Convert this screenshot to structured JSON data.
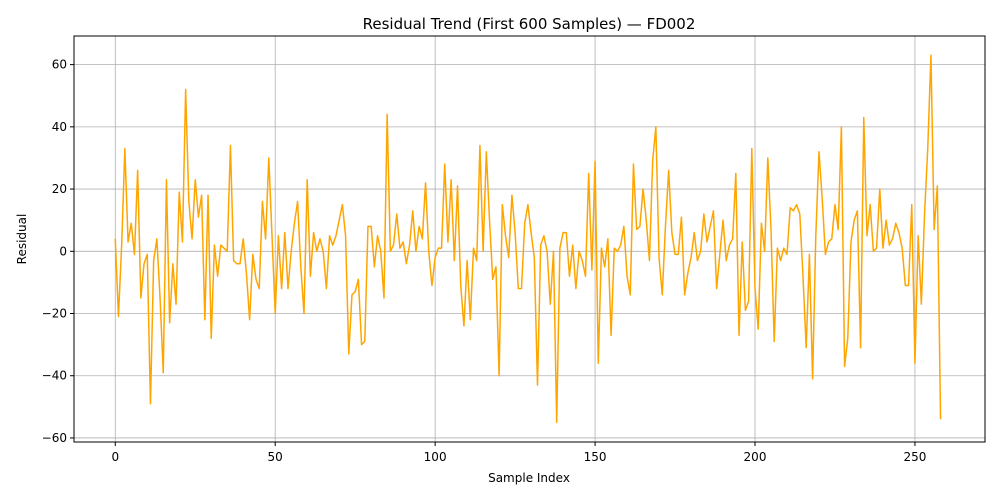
{
  "chart_data": {
    "type": "line",
    "title": "Residual Trend (First 600 Samples) — FD002",
    "xlabel": "Sample Index",
    "ylabel": "Residual",
    "xlim": [
      -12.9,
      271.9
    ],
    "ylim": [
      -61.3,
      69.2
    ],
    "xticks": [
      0,
      50,
      100,
      150,
      200,
      250
    ],
    "yticks": [
      -60,
      -40,
      -20,
      0,
      20,
      40,
      60
    ],
    "grid": true,
    "color": "#ffa500",
    "series": [
      {
        "values": [
          4,
          -21,
          2,
          33,
          3,
          9,
          -1,
          26,
          -15,
          -4,
          -1,
          -49,
          -3,
          4,
          -15,
          -39,
          23,
          -23,
          -4,
          -17,
          19,
          3,
          52,
          16,
          4,
          23,
          11,
          18,
          -22,
          18,
          -28,
          2,
          -8,
          2,
          1,
          0,
          34,
          -3,
          -4,
          -4,
          4,
          -7,
          -22,
          -1,
          -9,
          -12,
          16,
          4,
          30,
          5,
          -20,
          5,
          -12,
          6,
          -12,
          0,
          9,
          16,
          -5,
          -20,
          23,
          -8,
          6,
          0,
          4,
          0,
          -12,
          5,
          2,
          5,
          10,
          15,
          5,
          -33,
          -14,
          -13,
          -9,
          -30,
          -29,
          8,
          8,
          -5,
          5,
          0,
          -15,
          44,
          0,
          2,
          12,
          1,
          3,
          -4,
          2,
          13,
          0,
          8,
          4,
          22,
          0,
          -11,
          -2,
          1,
          1,
          28,
          3,
          23,
          -3,
          21,
          -11,
          -24,
          -3,
          -22,
          1,
          -3,
          34,
          0,
          32,
          10,
          -9,
          -5,
          -40,
          15,
          5,
          -2,
          18,
          6,
          -12,
          -12,
          9,
          15,
          6,
          -2,
          -43,
          2,
          5,
          0,
          -17,
          0,
          -55,
          1,
          6,
          6,
          -8,
          2,
          -12,
          0,
          -3,
          -8,
          25,
          -6,
          29,
          -36,
          1,
          -5,
          4,
          -27,
          1,
          0,
          2,
          8,
          -8,
          -14,
          28,
          7,
          8,
          20,
          10,
          -3,
          29,
          40,
          -2,
          -14,
          8,
          26,
          6,
          -1,
          -1,
          11,
          -14,
          -7,
          -2,
          6,
          -3,
          0,
          12,
          3,
          8,
          13,
          -12,
          -1,
          10,
          -3,
          2,
          4,
          25,
          -27,
          3,
          -19,
          -16,
          33,
          -12,
          -25,
          9,
          0,
          30,
          7,
          -29,
          1,
          -3,
          1,
          -1,
          14,
          13,
          15,
          12,
          -8,
          -31,
          -1,
          -41,
          5,
          32,
          17,
          -1,
          3,
          4,
          15,
          7,
          40,
          -37,
          -28,
          3,
          10,
          13,
          -31,
          43,
          5,
          15,
          0,
          1,
          20,
          1,
          10,
          2,
          4,
          9,
          6,
          1,
          -11,
          -11,
          15,
          -36,
          5,
          -17,
          12,
          33,
          63,
          7,
          21,
          -54
        ]
      }
    ]
  }
}
